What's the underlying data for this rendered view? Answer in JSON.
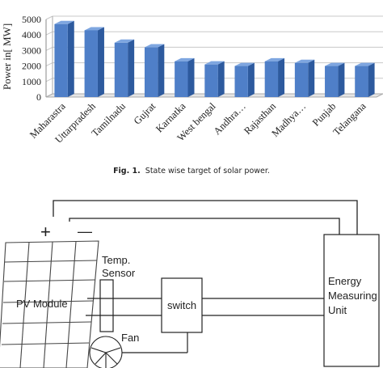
{
  "chart_data": {
    "type": "bar",
    "title": "",
    "xlabel": "",
    "ylabel": "Power in[ MW]",
    "categories": [
      "Maharastra",
      "Uttarpradesh",
      "Tamilnadu",
      "Gujrat",
      "Karnatka",
      "West bengal",
      "Andhra…",
      "Rajasthan",
      "Madhya…",
      "Punjab",
      "Telangana"
    ],
    "values": [
      4700,
      4300,
      3500,
      3200,
      2300,
      2100,
      2000,
      2300,
      2200,
      2000,
      2000
    ],
    "ylim": [
      0,
      5000
    ],
    "yticks": [
      "0",
      "1000",
      "2000",
      "3000",
      "4000",
      "5000"
    ],
    "grid": true,
    "bar_color": "#4f7fc8"
  },
  "caption": {
    "label": "Fig. 1.",
    "text": "State wise target of solar power."
  },
  "diagram": {
    "plus_sign": "+",
    "minus_sign": "—",
    "pv_module_label": "PV Module",
    "temp_sensor_line1": "Temp.",
    "temp_sensor_line2": "Sensor",
    "switch_label": "switch",
    "fan_label": "Fan",
    "energy_unit_line1": "Energy",
    "energy_unit_line2": "Measuring",
    "energy_unit_line3": "Unit"
  }
}
